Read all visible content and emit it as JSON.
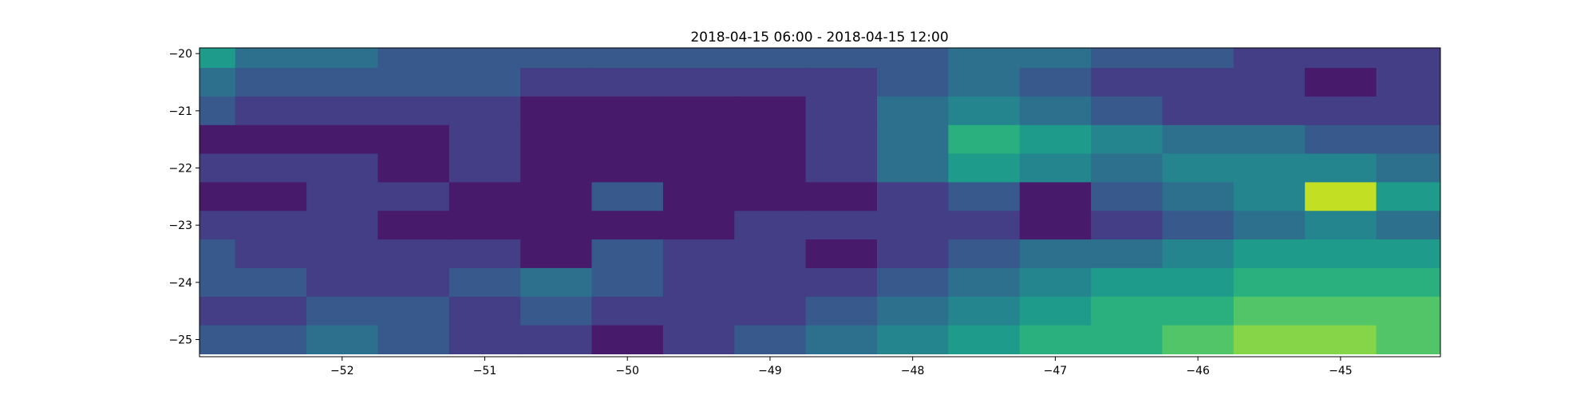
{
  "chart_data": {
    "type": "heatmap",
    "subtype": "filled-contour",
    "title": "2018-04-15 06:00 - 2018-04-15 12:00",
    "xlabel": "",
    "ylabel": "",
    "xlim": [
      -53.0,
      -44.3
    ],
    "ylim": [
      -25.3,
      -19.9
    ],
    "xticks": [
      -52,
      -51,
      -50,
      -49,
      -48,
      -47,
      -46,
      -45
    ],
    "xtick_labels": [
      "−52",
      "−51",
      "−50",
      "−49",
      "−48",
      "−47",
      "−46",
      "−45"
    ],
    "yticks": [
      -20,
      -21,
      -22,
      -23,
      -24,
      -25
    ],
    "ytick_labels": [
      "−20",
      "−21",
      "−22",
      "−23",
      "−24",
      "−25"
    ],
    "colormap": "viridis",
    "level_colors": [
      "#481a6c",
      "#433e85",
      "#38598c",
      "#2d708e",
      "#25858e",
      "#1e9b8a",
      "#2ab07f",
      "#52c569",
      "#86d549",
      "#c2df23",
      "#fde725"
    ],
    "grid": false,
    "legend": "none",
    "level_index_grid": {
      "x_start": -53.0,
      "x_step": 0.5,
      "y_start": -20.0,
      "y_step": -0.5,
      "rows": [
        [
          5,
          3,
          3,
          2,
          2,
          2,
          2,
          2,
          2,
          2,
          2,
          3,
          3,
          2,
          2,
          1,
          1,
          1,
          1
        ],
        [
          3,
          2,
          2,
          2,
          2,
          1,
          1,
          1,
          1,
          1,
          2,
          3,
          2,
          1,
          1,
          1,
          0,
          1,
          1
        ],
        [
          2,
          1,
          1,
          1,
          1,
          0,
          0,
          0,
          0,
          1,
          3,
          4,
          3,
          2,
          1,
          1,
          1,
          1,
          1
        ],
        [
          0,
          0,
          0,
          0,
          1,
          0,
          0,
          0,
          0,
          1,
          3,
          6,
          5,
          4,
          3,
          3,
          2,
          2,
          0
        ],
        [
          1,
          1,
          1,
          0,
          1,
          0,
          0,
          0,
          0,
          1,
          3,
          5,
          4,
          3,
          4,
          4,
          4,
          3,
          2
        ],
        [
          0,
          0,
          1,
          1,
          0,
          0,
          2,
          0,
          0,
          0,
          1,
          2,
          0,
          2,
          3,
          4,
          9,
          5,
          4
        ],
        [
          1,
          1,
          1,
          0,
          0,
          0,
          0,
          0,
          1,
          1,
          1,
          1,
          0,
          1,
          2,
          3,
          4,
          3,
          2
        ],
        [
          2,
          1,
          1,
          1,
          1,
          0,
          2,
          1,
          1,
          0,
          1,
          2,
          3,
          3,
          4,
          5,
          5,
          5,
          5
        ],
        [
          2,
          2,
          1,
          1,
          2,
          3,
          2,
          1,
          1,
          1,
          2,
          3,
          4,
          5,
          5,
          6,
          6,
          6,
          6
        ],
        [
          1,
          1,
          2,
          2,
          1,
          2,
          1,
          1,
          1,
          2,
          3,
          4,
          5,
          6,
          6,
          7,
          7,
          7,
          8
        ],
        [
          2,
          2,
          3,
          2,
          1,
          1,
          0,
          1,
          2,
          3,
          4,
          5,
          6,
          6,
          7,
          8,
          8,
          7,
          7
        ]
      ]
    }
  }
}
